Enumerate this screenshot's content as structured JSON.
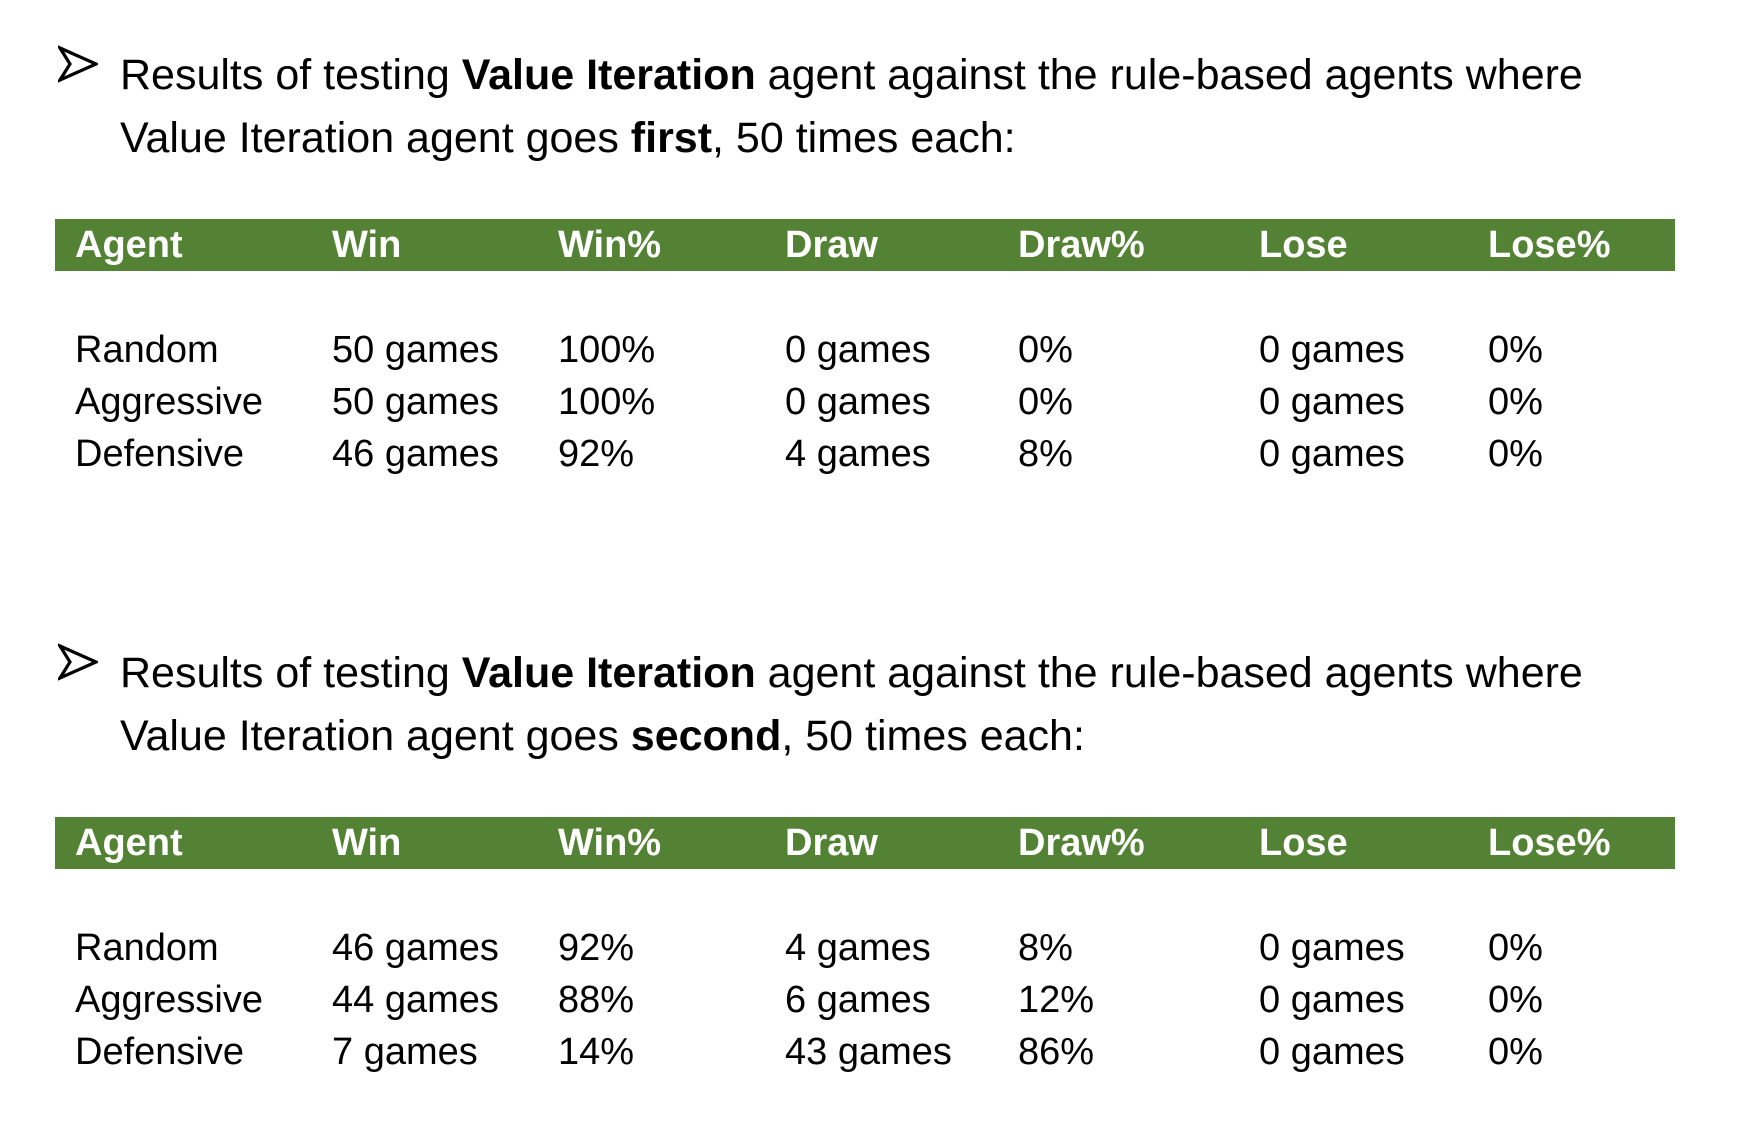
{
  "section1": {
    "heading": {
      "pre": "Results of testing ",
      "bold1": "Value Iteration",
      "mid": " agent against the rule-based agents where Value Iteration agent goes ",
      "bold2": "first",
      "post": ", 50 times each:"
    },
    "table": {
      "headers": [
        "Agent",
        "Win",
        "Win%",
        "Draw",
        "Draw%",
        "Lose",
        "Lose%"
      ],
      "rows": [
        [
          "Random",
          "50 games",
          "100%",
          "0 games",
          "0%",
          "0 games",
          "0%"
        ],
        [
          "Aggressive",
          "50 games",
          "100%",
          "0 games",
          "0%",
          "0 games",
          "0%"
        ],
        [
          "Defensive",
          "46 games",
          "92%",
          "4 games",
          "8%",
          "0 games",
          "0%"
        ]
      ]
    }
  },
  "section2": {
    "heading": {
      "pre": "Results of testing ",
      "bold1": "Value Iteration",
      "mid": " agent against the rule-based agents where Value Iteration agent goes ",
      "bold2": "second",
      "post": ", 50 times each:"
    },
    "table": {
      "headers": [
        "Agent",
        "Win",
        "Win%",
        "Draw",
        "Draw%",
        "Lose",
        "Lose%"
      ],
      "rows": [
        [
          "Random",
          "46 games",
          "92%",
          "4 games",
          "8%",
          "0 games",
          "0%"
        ],
        [
          "Aggressive",
          "44 games",
          "88%",
          "6 games",
          "12%",
          "0 games",
          "0%"
        ],
        [
          "Defensive",
          "7 games",
          "14%",
          "43 games",
          "86%",
          "0 games",
          "0%"
        ]
      ]
    }
  },
  "colors": {
    "header_bg": "#548235",
    "header_text": "#ffffff",
    "body_text": "#000000"
  },
  "icons": {
    "bullet": "arrowhead-bullet-icon"
  }
}
